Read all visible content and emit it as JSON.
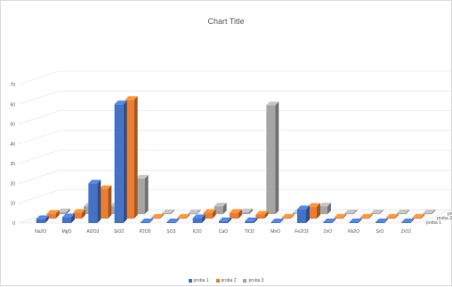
{
  "chart_data": {
    "type": "bar",
    "title": "Chart Title",
    "categories": [
      "Na2O",
      "MgO",
      "Al2O3",
      "SiO2",
      "P2O5",
      "SO3",
      "K2O",
      "CaO",
      "TiO2",
      "MnO",
      "Fe2O3",
      "ZnO",
      "Rb2O",
      "SrO",
      "ZrO2"
    ],
    "series": [
      {
        "name": "proba 1",
        "color": "#4472c4",
        "values": [
          2,
          3,
          20,
          60,
          0,
          0,
          2.5,
          1,
          1,
          0,
          7,
          0,
          0,
          0,
          0
        ]
      },
      {
        "name": "proba 2",
        "color": "#ed7d31",
        "values": [
          2.5,
          3,
          15,
          60,
          0.5,
          0.5,
          3,
          3,
          2,
          0.5,
          6,
          0.5,
          0.5,
          0.5,
          0.5
        ]
      },
      {
        "name": "proba 3",
        "color": "#a5a5a5",
        "values": [
          1,
          4,
          4,
          18,
          0.5,
          0.5,
          4,
          1,
          55,
          0.5,
          4,
          0.5,
          0.5,
          0.5,
          0.5
        ]
      }
    ],
    "ylim": [
      0,
      70
    ],
    "yticks": [
      0,
      10,
      20,
      30,
      40,
      50,
      60,
      70
    ],
    "depth_labels": [
      "proba 1",
      "proba 2",
      "proba"
    ],
    "grid": true,
    "legend_position": "bottom"
  }
}
